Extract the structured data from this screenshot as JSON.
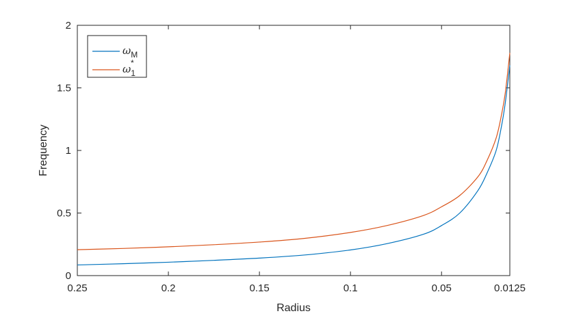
{
  "chart_data": {
    "type": "line",
    "xlabel": "Radius",
    "ylabel": "Frequency",
    "x_reversed": true,
    "xlim": [
      0.0125,
      0.25
    ],
    "ylim": [
      0,
      2
    ],
    "x_ticks": [
      "0.25",
      "0.2",
      "0.15",
      "0.1",
      "0.05",
      "0.0125"
    ],
    "y_ticks": [
      "0",
      "0.5",
      "1",
      "1.5",
      "2"
    ],
    "grid": false,
    "legend_placement": "top-left",
    "series": [
      {
        "name": "ωM",
        "legend_symbol": "ω",
        "legend_sub": "M",
        "legend_sup": "",
        "color": "#0072BD",
        "x": [
          0.25,
          0.225,
          0.2,
          0.175,
          0.15,
          0.125,
          0.1,
          0.08,
          0.06,
          0.05,
          0.04,
          0.03,
          0.025,
          0.02,
          0.017,
          0.015,
          0.0125
        ],
        "y": [
          0.085,
          0.095,
          0.107,
          0.122,
          0.14,
          0.165,
          0.205,
          0.255,
          0.33,
          0.4,
          0.5,
          0.68,
          0.82,
          1.0,
          1.2,
          1.38,
          1.68
        ]
      },
      {
        "name": "ω1*",
        "legend_symbol": "ω",
        "legend_sub": "1",
        "legend_sup": "*",
        "color": "#D95319",
        "x": [
          0.25,
          0.225,
          0.2,
          0.175,
          0.15,
          0.125,
          0.1,
          0.08,
          0.06,
          0.05,
          0.04,
          0.03,
          0.025,
          0.02,
          0.017,
          0.015,
          0.0125
        ],
        "y": [
          0.207,
          0.217,
          0.23,
          0.247,
          0.268,
          0.298,
          0.345,
          0.4,
          0.48,
          0.55,
          0.64,
          0.79,
          0.92,
          1.1,
          1.29,
          1.46,
          1.78
        ]
      }
    ]
  }
}
